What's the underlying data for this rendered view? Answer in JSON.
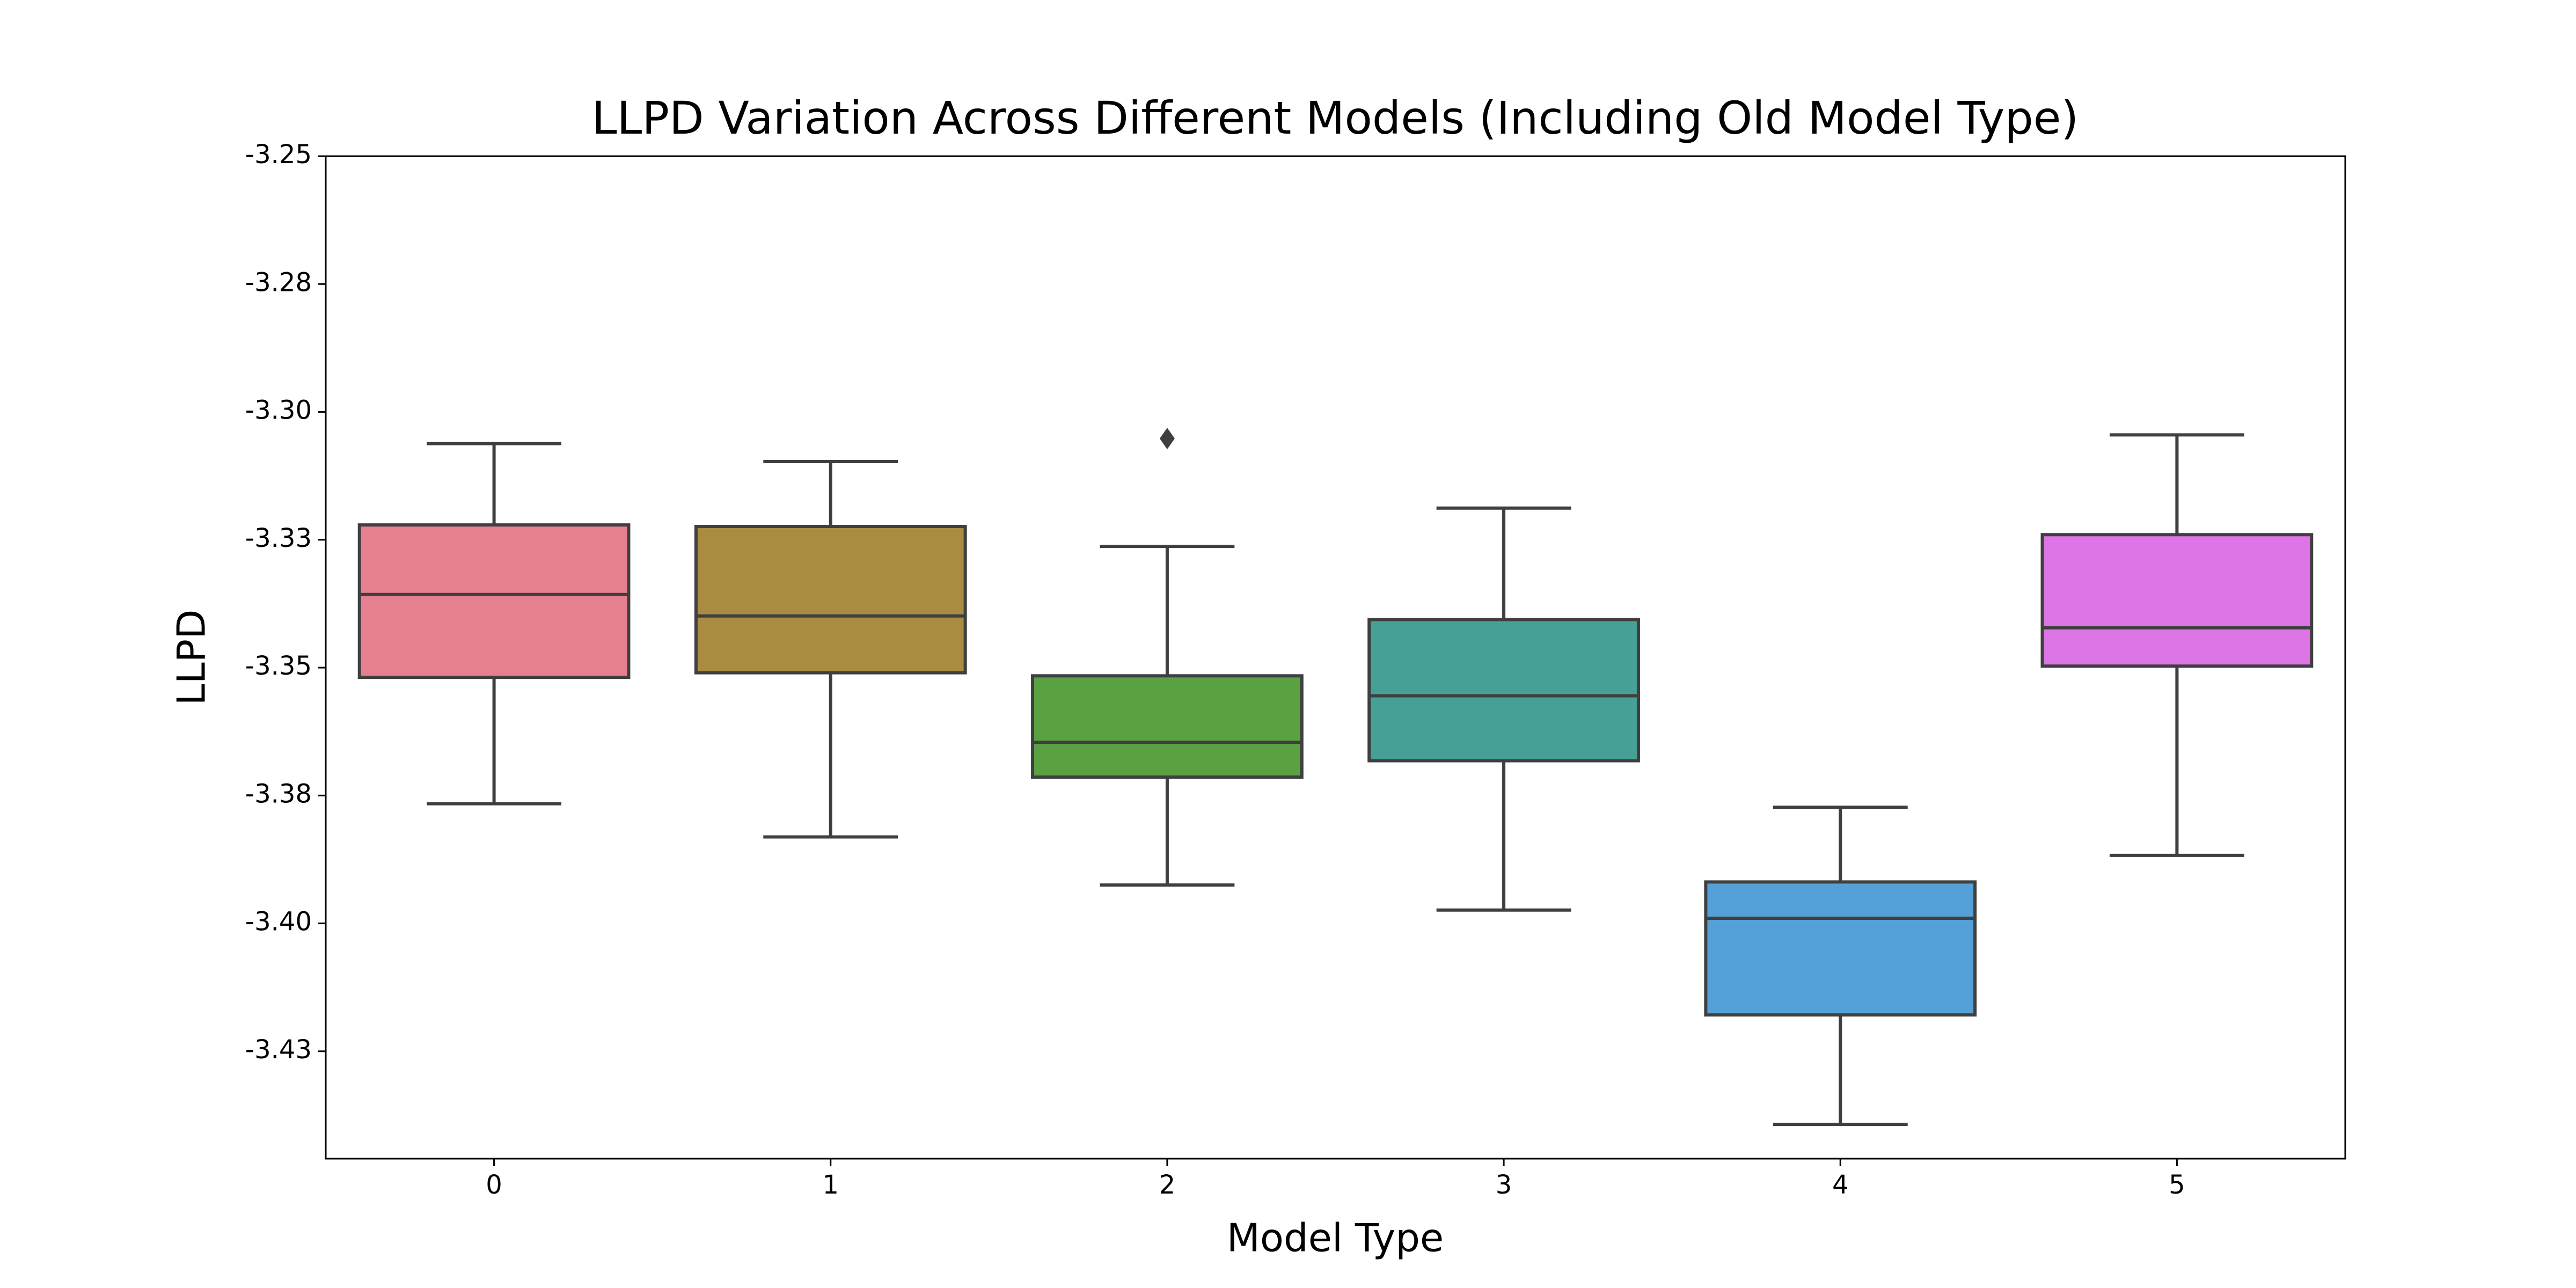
{
  "chart_data": {
    "type": "box",
    "title": "LLPD Variation Across Different Models (Including Old Model Type)",
    "x_label": "Model Type",
    "y_label": "LLPD",
    "categories": [
      "0",
      "1",
      "2",
      "3",
      "4",
      "5"
    ],
    "boxes": [
      {
        "whisker_low": -3.3766,
        "q1": -3.3519,
        "median": -3.3357,
        "q3": -3.3221,
        "whisker_high": -3.3062,
        "color": "#e67f8f"
      },
      {
        "whisker_low": -3.3831,
        "q1": -3.351,
        "median": -3.3399,
        "q3": -3.3224,
        "whisker_high": -3.3097,
        "color": "#a98b42"
      },
      {
        "whisker_low": -3.3925,
        "q1": -3.3714,
        "median": -3.3646,
        "q3": -3.3516,
        "whisker_high": -3.3263,
        "outliers": [
          -3.3052
        ],
        "color": "#5aa142"
      },
      {
        "whisker_low": -3.3974,
        "q1": -3.3682,
        "median": -3.3555,
        "q3": -3.3406,
        "whisker_high": -3.3188,
        "color": "#46a096"
      },
      {
        "whisker_low": -3.4393,
        "q1": -3.4179,
        "median": -3.399,
        "q3": -3.3919,
        "whisker_high": -3.3773,
        "color": "#55a0d9"
      },
      {
        "whisker_low": -3.3867,
        "q1": -3.3497,
        "median": -3.3422,
        "q3": -3.324,
        "whisker_high": -3.3045,
        "color": "#dc75e5"
      }
    ],
    "ylim": [
      -3.446,
      -3.25
    ],
    "yticks": [
      -3.25,
      {
        "value": -3.275,
        "label": "-3.28"
      },
      {
        "value": -3.3,
        "label": "-3.30"
      },
      {
        "value": -3.325,
        "label": "-3.33"
      },
      -3.35,
      {
        "value": -3.375,
        "label": "-3.38"
      },
      {
        "value": -3.4,
        "label": "-3.40"
      },
      {
        "value": -3.425,
        "label": "-3.43"
      }
    ]
  }
}
